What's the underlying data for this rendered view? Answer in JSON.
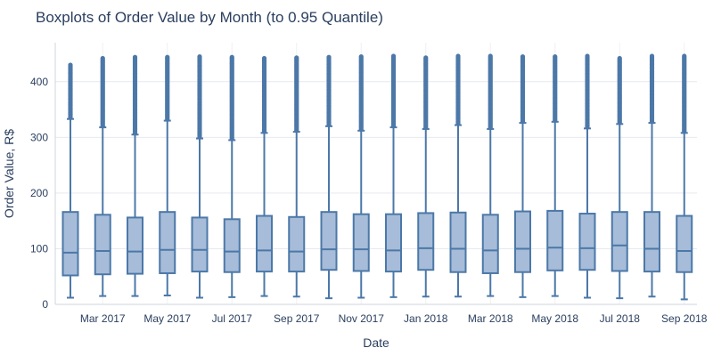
{
  "chart_data": {
    "type": "boxplot",
    "title": "Boxplots of Order Value by Month (to 0.95 Quantile)",
    "xlabel": "Date",
    "ylabel": "Order Value, R$",
    "ylim": [
      0,
      470
    ],
    "yticks": [
      0,
      100,
      200,
      300,
      400
    ],
    "xtick_labels": [
      "Mar 2017",
      "May 2017",
      "Jul 2017",
      "Sep 2017",
      "Nov 2017",
      "Jan 2018",
      "Mar 2018",
      "May 2018",
      "Jul 2018",
      "Sep 2018"
    ],
    "grid": true,
    "color": "#4c78a8",
    "fill": "#a6bcd8",
    "categories": [
      "Feb 2017",
      "Mar 2017",
      "Apr 2017",
      "May 2017",
      "Jun 2017",
      "Jul 2017",
      "Aug 2017",
      "Sep 2017",
      "Oct 2017",
      "Nov 2017",
      "Dec 2017",
      "Jan 2018",
      "Feb 2018",
      "Mar 2018",
      "Apr 2018",
      "May 2018",
      "Jun 2018",
      "Jul 2018",
      "Aug 2018",
      "Sep 2018"
    ],
    "boxes": [
      {
        "min": 12,
        "q1": 52,
        "median": 93,
        "q3": 166,
        "max": 333,
        "outlier_max": 430
      },
      {
        "min": 15,
        "q1": 54,
        "median": 96,
        "q3": 161,
        "max": 318,
        "outlier_max": 442
      },
      {
        "min": 15,
        "q1": 55,
        "median": 95,
        "q3": 156,
        "max": 305,
        "outlier_max": 444
      },
      {
        "min": 16,
        "q1": 56,
        "median": 98,
        "q3": 166,
        "max": 330,
        "outlier_max": 444
      },
      {
        "min": 12,
        "q1": 59,
        "median": 98,
        "q3": 156,
        "max": 298,
        "outlier_max": 445
      },
      {
        "min": 13,
        "q1": 58,
        "median": 95,
        "q3": 153,
        "max": 295,
        "outlier_max": 444
      },
      {
        "min": 15,
        "q1": 59,
        "median": 97,
        "q3": 159,
        "max": 308,
        "outlier_max": 442
      },
      {
        "min": 14,
        "q1": 59,
        "median": 95,
        "q3": 157,
        "max": 310,
        "outlier_max": 443
      },
      {
        "min": 11,
        "q1": 62,
        "median": 99,
        "q3": 166,
        "max": 320,
        "outlier_max": 444
      },
      {
        "min": 12,
        "q1": 60,
        "median": 99,
        "q3": 162,
        "max": 312,
        "outlier_max": 445
      },
      {
        "min": 13,
        "q1": 59,
        "median": 97,
        "q3": 162,
        "max": 318,
        "outlier_max": 446
      },
      {
        "min": 14,
        "q1": 62,
        "median": 101,
        "q3": 164,
        "max": 315,
        "outlier_max": 443
      },
      {
        "min": 14,
        "q1": 58,
        "median": 100,
        "q3": 165,
        "max": 322,
        "outlier_max": 446
      },
      {
        "min": 15,
        "q1": 56,
        "median": 97,
        "q3": 161,
        "max": 315,
        "outlier_max": 446
      },
      {
        "min": 13,
        "q1": 58,
        "median": 100,
        "q3": 167,
        "max": 326,
        "outlier_max": 445
      },
      {
        "min": 15,
        "q1": 61,
        "median": 102,
        "q3": 168,
        "max": 328,
        "outlier_max": 445
      },
      {
        "min": 12,
        "q1": 62,
        "median": 101,
        "q3": 163,
        "max": 316,
        "outlier_max": 446
      },
      {
        "min": 11,
        "q1": 60,
        "median": 106,
        "q3": 166,
        "max": 324,
        "outlier_max": 442
      },
      {
        "min": 14,
        "q1": 59,
        "median": 100,
        "q3": 166,
        "max": 326,
        "outlier_max": 446
      },
      {
        "min": 9,
        "q1": 58,
        "median": 96,
        "q3": 159,
        "max": 308,
        "outlier_max": 446
      }
    ]
  }
}
